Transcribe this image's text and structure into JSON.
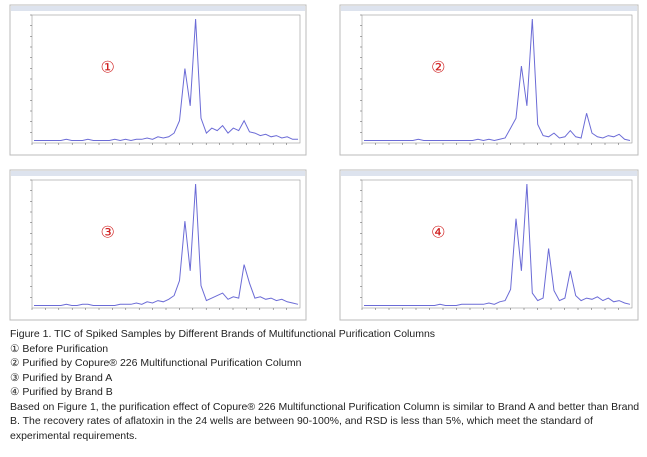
{
  "chart_data": [
    {
      "type": "line",
      "annotation": "①",
      "color": "#6b6bd6",
      "ylim": [
        0,
        100
      ],
      "values": [
        2,
        2,
        2,
        2,
        2,
        2,
        3,
        2,
        2,
        2,
        3,
        2,
        2,
        2,
        2,
        3,
        2,
        3,
        2,
        3,
        3,
        4,
        3,
        5,
        4,
        5,
        8,
        18,
        60,
        30,
        100,
        20,
        8,
        12,
        10,
        14,
        8,
        12,
        10,
        18,
        9,
        8,
        6,
        7,
        5,
        6,
        4,
        5,
        3,
        3
      ]
    },
    {
      "type": "line",
      "annotation": "②",
      "color": "#6b6bd6",
      "ylim": [
        0,
        100
      ],
      "values": [
        2,
        2,
        2,
        2,
        2,
        2,
        2,
        2,
        2,
        2,
        3,
        2,
        2,
        2,
        2,
        2,
        2,
        2,
        2,
        2,
        2,
        3,
        2,
        3,
        2,
        3,
        4,
        12,
        20,
        62,
        30,
        100,
        15,
        6,
        5,
        8,
        4,
        5,
        10,
        5,
        4,
        24,
        8,
        5,
        4,
        6,
        5,
        7,
        3,
        2
      ]
    },
    {
      "type": "line",
      "annotation": "③",
      "color": "#6b6bd6",
      "ylim": [
        0,
        100
      ],
      "values": [
        2,
        2,
        2,
        2,
        2,
        2,
        3,
        2,
        2,
        3,
        3,
        2,
        2,
        2,
        2,
        2,
        3,
        3,
        3,
        4,
        3,
        5,
        4,
        6,
        5,
        7,
        10,
        22,
        70,
        30,
        100,
        18,
        6,
        8,
        10,
        12,
        7,
        9,
        8,
        35,
        20,
        8,
        9,
        7,
        8,
        6,
        7,
        5,
        4,
        3
      ]
    },
    {
      "type": "line",
      "annotation": "④",
      "color": "#6b6bd6",
      "ylim": [
        0,
        100
      ],
      "values": [
        2,
        2,
        2,
        2,
        2,
        2,
        2,
        2,
        2,
        2,
        2,
        2,
        2,
        2,
        3,
        2,
        2,
        2,
        3,
        3,
        3,
        3,
        3,
        4,
        3,
        5,
        6,
        15,
        72,
        30,
        100,
        12,
        6,
        8,
        48,
        14,
        6,
        8,
        30,
        10,
        6,
        8,
        7,
        9,
        6,
        8,
        5,
        6,
        4,
        3
      ]
    }
  ],
  "caption": {
    "title": "Figure 1. TIC of Spiked Samples by Different Brands of Multifunctional Purification Columns",
    "items": [
      "① Before Purification",
      "② Purified by Copure® 226 Multifunctional Purification Column",
      "③ Purified by Brand A",
      "④ Purified by Brand B"
    ],
    "text": "Based on Figure 1, the purification effect of Copure® 226 Multifunctional Purification Column is similar to Brand A and better than Brand B. The recovery rates of aflatoxin in the 24 wells are between 90-100%, and RSD is less than 5%, which meet the standard of experimental requirements."
  }
}
